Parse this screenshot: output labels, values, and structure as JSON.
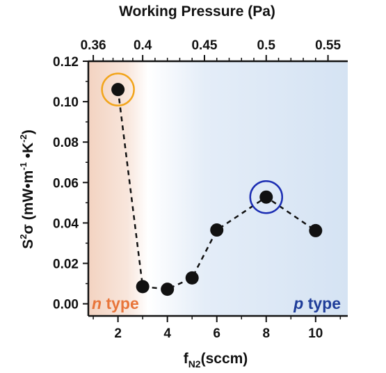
{
  "chart_data": {
    "type": "scatter",
    "line_style": "dashed",
    "x": [
      2,
      3,
      4,
      5,
      6,
      8,
      10
    ],
    "y": [
      0.106,
      0.0085,
      0.0072,
      0.0128,
      0.0365,
      0.0528,
      0.0362
    ],
    "xlim": [
      0.8,
      11.3
    ],
    "ylim": [
      -0.006,
      0.12
    ],
    "x_ticks": [
      2,
      4,
      6,
      8,
      10
    ],
    "x_tick_labels": [
      "2",
      "4",
      "6",
      "8",
      "10"
    ],
    "y_ticks": [
      0,
      0.02,
      0.04,
      0.06,
      0.08,
      0.1,
      0.12
    ],
    "y_tick_labels": [
      "0.00",
      "0.02",
      "0.04",
      "0.06",
      "0.08",
      "0.10",
      "0.12"
    ],
    "xlabel": {
      "main": "f",
      "sub": "N2",
      "tail": "(sccm)"
    },
    "ylabel": {
      "s": "S",
      "s_sup": "2",
      "sigma": "σ (mW•m",
      "m_sup": "-1",
      "mid": " •K",
      "k_sup": "-2",
      "close": ")"
    },
    "top_axis": {
      "title": "Working Pressure (Pa)",
      "ticks": [
        {
          "label": "0.36",
          "x": 1.0
        },
        {
          "label": "0.4",
          "x": 3.0
        },
        {
          "label": "0.45",
          "x": 5.5
        },
        {
          "label": "0.5",
          "x": 8.0
        },
        {
          "label": "0.55",
          "x": 10.5
        }
      ]
    },
    "highlighted_points": [
      {
        "x": 2,
        "y": 0.106,
        "color": "#f2a51c"
      },
      {
        "x": 8,
        "y": 0.0528,
        "color": "#1b2db3"
      }
    ],
    "regions": [
      {
        "label_italic": "n",
        "label_rest": " type",
        "color": "#e8753a",
        "position": "bottom-left"
      },
      {
        "label_italic": "p",
        "label_rest": " type",
        "color": "#1f3d99",
        "position": "bottom-right"
      }
    ],
    "background_gradient": {
      "left": "#f3d3c1",
      "right": "#d5e3f3",
      "transition_x": [
        3,
        4.5
      ]
    },
    "grid": false
  }
}
